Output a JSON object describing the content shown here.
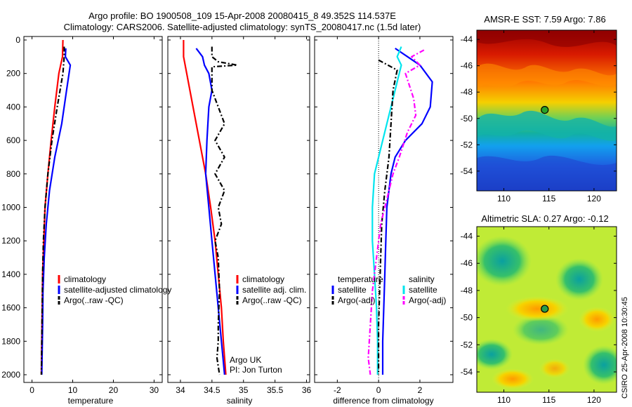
{
  "header": {
    "title_line1": "Argo profile: BO 1900508_109 15-Apr-2008 20080415_8 49.352S 114.537E",
    "title_line2": "Climatology: CARS2006. Satellite-adjusted climatology: synTS_20080417.nc (1.5d later)"
  },
  "colors": {
    "red": "#ff0000",
    "blue": "#0000ff",
    "black": "#000000",
    "cyan": "#00e5ee",
    "magenta": "#ff00ff"
  },
  "depth_ticks": [
    "0",
    "200",
    "400",
    "600",
    "800",
    "1000",
    "1200",
    "1400",
    "1600",
    "1800",
    "2000"
  ],
  "chart_data": [
    {
      "type": "line",
      "xlabel": "temperature",
      "xticks": [
        "0",
        "10",
        "20",
        "30"
      ],
      "xlim": [
        -2,
        32
      ],
      "ylim": [
        0,
        2050
      ],
      "legend": {
        "items": [
          "climatology",
          "satellite-adjusted climatology",
          "Argo(..raw -QC)"
        ],
        "colors": [
          "red",
          "blue",
          "black"
        ]
      },
      "series": [
        {
          "color": "red",
          "style": "solid",
          "points": [
            [
              7.6,
              0
            ],
            [
              7.5,
              100
            ],
            [
              6.6,
              200
            ],
            [
              5.6,
              400
            ],
            [
              4.7,
              600
            ],
            [
              3.9,
              800
            ],
            [
              3.2,
              1000
            ],
            [
              2.9,
              1200
            ],
            [
              2.6,
              1400
            ],
            [
              2.5,
              1600
            ],
            [
              2.4,
              1800
            ],
            [
              2.3,
              2000
            ]
          ]
        },
        {
          "color": "blue",
          "style": "solid",
          "points": [
            [
              8.3,
              50
            ],
            [
              8.2,
              100
            ],
            [
              9.4,
              150
            ],
            [
              8.5,
              300
            ],
            [
              7.3,
              500
            ],
            [
              5.6,
              700
            ],
            [
              4.3,
              900
            ],
            [
              3.5,
              1100
            ],
            [
              3.0,
              1300
            ],
            [
              2.7,
              1500
            ],
            [
              2.6,
              1700
            ],
            [
              2.5,
              1850
            ],
            [
              2.4,
              2000
            ]
          ]
        },
        {
          "color": "black",
          "style": "dashdot",
          "points": [
            [
              7.9,
              40
            ],
            [
              7.9,
              100
            ],
            [
              7.6,
              200
            ],
            [
              6.2,
              400
            ],
            [
              4.9,
              600
            ],
            [
              3.9,
              800
            ],
            [
              3.2,
              1000
            ],
            [
              2.8,
              1200
            ],
            [
              2.6,
              1400
            ],
            [
              2.5,
              1600
            ],
            [
              2.4,
              1800
            ],
            [
              2.3,
              2000
            ]
          ]
        }
      ]
    },
    {
      "type": "line",
      "xlabel": "salinity",
      "xticks": [
        "34",
        "34.5",
        "35",
        "35.5",
        "36"
      ],
      "xlim": [
        33.8,
        36.05
      ],
      "ylim": [
        0,
        2050
      ],
      "legend": {
        "items": [
          "climatology",
          "satellite adj. clim.",
          "Argo(..raw -QC)"
        ],
        "colors": [
          "red",
          "blue",
          "black"
        ]
      },
      "annotation": [
        "Argo UK",
        "PI: Jon Turton"
      ],
      "series": [
        {
          "color": "red",
          "style": "solid",
          "points": [
            [
              34.05,
              0
            ],
            [
              34.05,
              100
            ],
            [
              34.1,
              200
            ],
            [
              34.2,
              400
            ],
            [
              34.3,
              600
            ],
            [
              34.4,
              800
            ],
            [
              34.48,
              1000
            ],
            [
              34.55,
              1200
            ],
            [
              34.6,
              1400
            ],
            [
              34.65,
              1600
            ],
            [
              34.68,
              1800
            ],
            [
              34.72,
              2000
            ]
          ]
        },
        {
          "color": "blue",
          "style": "solid",
          "points": [
            [
              34.25,
              50
            ],
            [
              34.35,
              100
            ],
            [
              34.38,
              150
            ],
            [
              34.45,
              200
            ],
            [
              34.5,
              300
            ],
            [
              34.45,
              400
            ],
            [
              34.42,
              600
            ],
            [
              34.4,
              800
            ],
            [
              34.45,
              1000
            ],
            [
              34.5,
              1200
            ],
            [
              34.55,
              1400
            ],
            [
              34.6,
              1600
            ],
            [
              34.65,
              1800
            ],
            [
              34.7,
              2000
            ]
          ]
        },
        {
          "color": "black",
          "style": "dashdot",
          "points": [
            [
              34.5,
              40
            ],
            [
              34.5,
              100
            ],
            [
              34.6,
              130
            ],
            [
              34.9,
              150
            ],
            [
              34.5,
              160
            ],
            [
              34.5,
              300
            ],
            [
              34.6,
              400
            ],
            [
              34.7,
              500
            ],
            [
              34.55,
              600
            ],
            [
              34.7,
              700
            ],
            [
              34.55,
              800
            ],
            [
              34.7,
              900
            ],
            [
              34.6,
              1000
            ],
            [
              34.65,
              1100
            ],
            [
              34.55,
              1200
            ],
            [
              34.6,
              1300
            ],
            [
              34.62,
              1500
            ],
            [
              34.6,
              1700
            ],
            [
              34.6,
              1800
            ],
            [
              34.58,
              1900
            ],
            [
              34.62,
              2000
            ]
          ]
        }
      ]
    },
    {
      "type": "line",
      "xlabel": "difference from climatology",
      "xticks": [
        "-2",
        "0",
        "2"
      ],
      "xlim": [
        -3.1,
        3.6
      ],
      "ylim": [
        0,
        2050
      ],
      "legend": {
        "left_title": "temperature",
        "left_items": [
          "satellite",
          "Argo(-adj)"
        ],
        "left_colors": [
          "blue",
          "black"
        ],
        "right_title": "salinity",
        "right_items": [
          "satellite",
          "Argo(-adj)"
        ],
        "right_colors": [
          "cyan",
          "magenta"
        ]
      },
      "series": [
        {
          "color": "blue",
          "style": "solid",
          "points": [
            [
              0.8,
              50
            ],
            [
              1.4,
              100
            ],
            [
              2.0,
              150
            ],
            [
              2.6,
              250
            ],
            [
              2.5,
              400
            ],
            [
              2.1,
              500
            ],
            [
              1.3,
              600
            ],
            [
              0.8,
              700
            ],
            [
              0.6,
              800
            ],
            [
              0.4,
              1000
            ],
            [
              0.35,
              1200
            ],
            [
              0.3,
              1400
            ],
            [
              0.25,
              1600
            ],
            [
              0.2,
              1800
            ],
            [
              0.2,
              2000
            ]
          ]
        },
        {
          "color": "cyan",
          "style": "solid",
          "points": [
            [
              1.1,
              40
            ],
            [
              0.9,
              100
            ],
            [
              1.1,
              150
            ],
            [
              0.9,
              250
            ],
            [
              0.6,
              400
            ],
            [
              0.2,
              600
            ],
            [
              -0.2,
              800
            ],
            [
              -0.3,
              1000
            ],
            [
              -0.3,
              1200
            ],
            [
              -0.2,
              1400
            ],
            [
              -0.1,
              1600
            ],
            [
              -0.05,
              1800
            ],
            [
              -0.05,
              2000
            ]
          ]
        },
        {
          "color": "black",
          "style": "dashdot",
          "points": [
            [
              0.0,
              120
            ],
            [
              0.9,
              180
            ],
            [
              0.7,
              300
            ],
            [
              0.6,
              500
            ],
            [
              0.5,
              700
            ],
            [
              0.3,
              900
            ],
            [
              0.15,
              1100
            ],
            [
              0.1,
              1300
            ],
            [
              0.05,
              1500
            ],
            [
              0.0,
              1700
            ],
            [
              0.0,
              2000
            ]
          ]
        },
        {
          "color": "magenta",
          "style": "dashdot",
          "points": [
            [
              2.2,
              60
            ],
            [
              1.6,
              100
            ],
            [
              2.0,
              150
            ],
            [
              1.3,
              200
            ],
            [
              1.7,
              350
            ],
            [
              1.8,
              450
            ],
            [
              1.4,
              550
            ],
            [
              1.0,
              700
            ],
            [
              0.7,
              800
            ],
            [
              0.5,
              900
            ],
            [
              0.3,
              1000
            ],
            [
              0.1,
              1100
            ],
            [
              -0.1,
              1300
            ],
            [
              -0.3,
              1500
            ],
            [
              -0.4,
              1700
            ],
            [
              -0.5,
              1900
            ],
            [
              -0.4,
              2000
            ]
          ]
        }
      ]
    },
    {
      "type": "heatmap",
      "title": "AMSR-E SST: 7.59 Argo: 7.86",
      "xticks": [
        "110",
        "115",
        "120"
      ],
      "yticks": [
        "-44",
        "-46",
        "-48",
        "-50",
        "-52",
        "-54"
      ],
      "xlim": [
        107,
        122.5
      ],
      "ylim": [
        -55.5,
        -43.3
      ],
      "marker": {
        "x": 114.537,
        "y": -49.352,
        "color": "#29a329"
      }
    },
    {
      "type": "heatmap",
      "title": "Altimetric SLA: 0.27 Argo: -0.12",
      "xticks": [
        "110",
        "115",
        "120"
      ],
      "yticks": [
        "-44",
        "-46",
        "-48",
        "-50",
        "-52",
        "-54"
      ],
      "xlim": [
        107,
        122.5
      ],
      "ylim": [
        -55.5,
        -43.3
      ],
      "marker": {
        "x": 114.537,
        "y": -49.352,
        "color": "#2a9d4a"
      }
    }
  ],
  "footer": {
    "stamp": "CSIRO 25-Apr-2008 10:30:45"
  }
}
